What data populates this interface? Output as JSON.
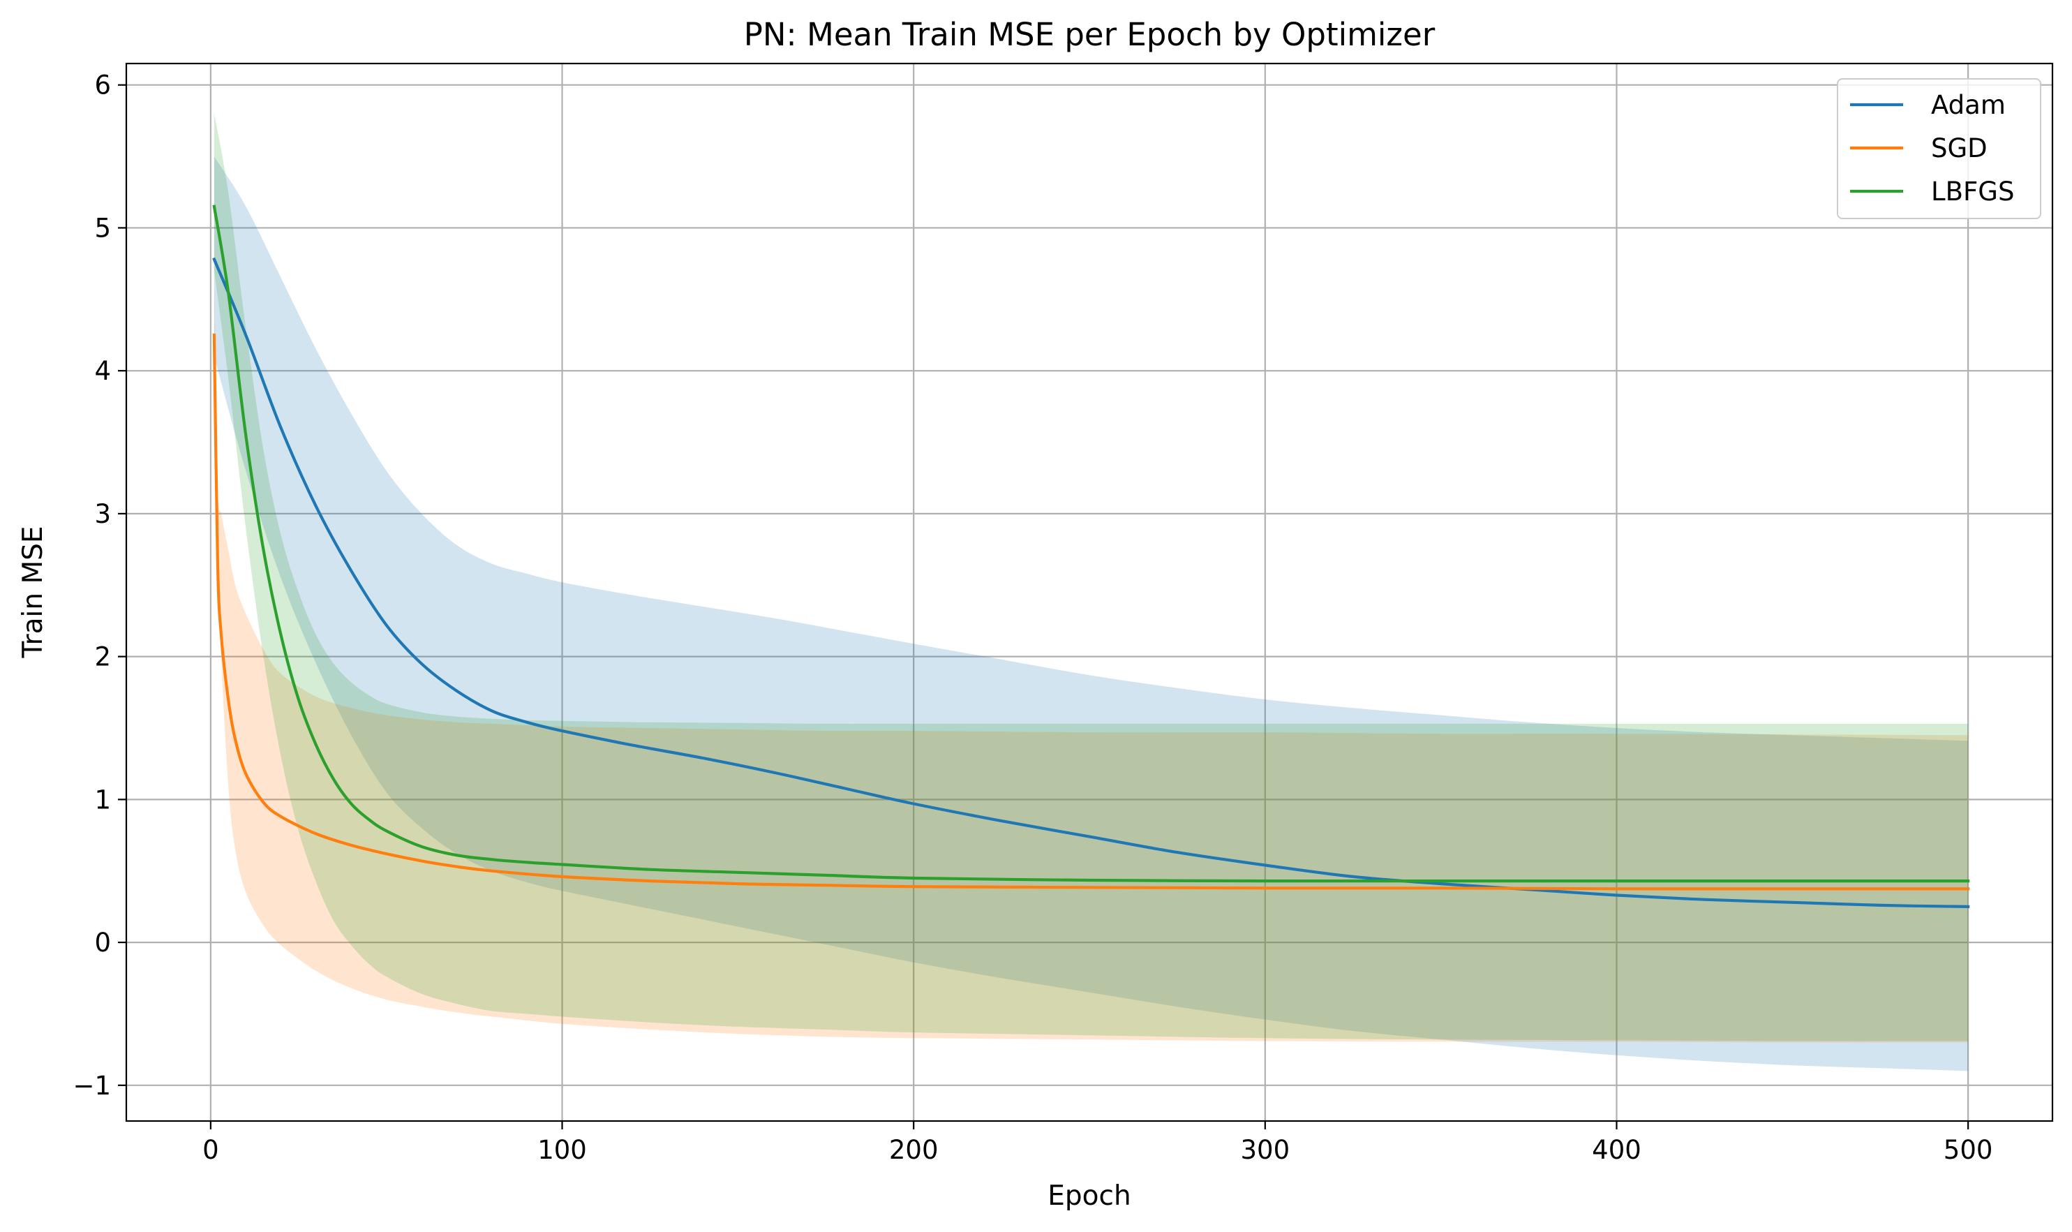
{
  "chart_data": {
    "type": "line",
    "title": "PN: Mean Train MSE per Epoch by Optimizer",
    "xlabel": "Epoch",
    "ylabel": "Train MSE",
    "xlim": [
      -24,
      524
    ],
    "ylim": [
      -1.25,
      6.15
    ],
    "xticks": [
      0,
      100,
      200,
      300,
      400,
      500
    ],
    "yticks": [
      -1,
      0,
      1,
      2,
      3,
      4,
      5,
      6
    ],
    "x_tick_labels": [
      "0",
      "100",
      "200",
      "300",
      "400",
      "500"
    ],
    "y_tick_labels": [
      "−1",
      "0",
      "1",
      "2",
      "3",
      "4",
      "5",
      "6"
    ],
    "grid": true,
    "legend_position": "upper right",
    "band_opacity": 0.2,
    "series": [
      {
        "name": "Adam",
        "color": "#1f77b4",
        "x": [
          1,
          10,
          20,
          30,
          40,
          50,
          60,
          70,
          80,
          90,
          100,
          120,
          140,
          160,
          180,
          200,
          225,
          250,
          275,
          300,
          325,
          350,
          375,
          400,
          425,
          450,
          475,
          500
        ],
        "mean": [
          4.78,
          4.25,
          3.6,
          3.05,
          2.6,
          2.22,
          1.95,
          1.76,
          1.62,
          1.54,
          1.48,
          1.38,
          1.29,
          1.19,
          1.08,
          0.97,
          0.85,
          0.74,
          0.63,
          0.54,
          0.46,
          0.41,
          0.37,
          0.33,
          0.3,
          0.28,
          0.26,
          0.25
        ],
        "lower": [
          4.1,
          3.3,
          2.55,
          1.95,
          1.45,
          1.05,
          0.8,
          0.62,
          0.5,
          0.42,
          0.36,
          0.26,
          0.16,
          0.06,
          -0.04,
          -0.14,
          -0.25,
          -0.35,
          -0.45,
          -0.54,
          -0.62,
          -0.68,
          -0.74,
          -0.79,
          -0.83,
          -0.86,
          -0.88,
          -0.9
        ],
        "upper": [
          5.5,
          5.15,
          4.65,
          4.15,
          3.7,
          3.3,
          3.0,
          2.78,
          2.65,
          2.58,
          2.52,
          2.43,
          2.35,
          2.27,
          2.18,
          2.09,
          1.98,
          1.87,
          1.78,
          1.7,
          1.64,
          1.59,
          1.54,
          1.5,
          1.47,
          1.45,
          1.43,
          1.41
        ]
      },
      {
        "name": "SGD",
        "color": "#ff7f0e",
        "x": [
          1,
          2,
          3,
          5,
          7,
          10,
          15,
          20,
          30,
          40,
          50,
          60,
          70,
          80,
          100,
          125,
          150,
          175,
          200,
          250,
          300,
          350,
          400,
          450,
          500
        ],
        "mean": [
          4.25,
          2.65,
          2.15,
          1.7,
          1.42,
          1.18,
          0.98,
          0.88,
          0.76,
          0.68,
          0.62,
          0.57,
          0.53,
          0.5,
          0.46,
          0.43,
          0.41,
          0.4,
          0.39,
          0.385,
          0.38,
          0.38,
          0.375,
          0.375,
          0.375
        ],
        "lower": [
          3.8,
          2.9,
          2.0,
          1.1,
          0.65,
          0.35,
          0.12,
          -0.02,
          -0.2,
          -0.32,
          -0.4,
          -0.45,
          -0.49,
          -0.52,
          -0.57,
          -0.61,
          -0.64,
          -0.66,
          -0.67,
          -0.68,
          -0.69,
          -0.695,
          -0.695,
          -0.7,
          -0.7
        ],
        "upper": [
          4.7,
          3.2,
          3.0,
          2.75,
          2.5,
          2.3,
          2.05,
          1.88,
          1.72,
          1.64,
          1.59,
          1.56,
          1.54,
          1.53,
          1.51,
          1.5,
          1.49,
          1.48,
          1.48,
          1.47,
          1.47,
          1.46,
          1.46,
          1.455,
          1.45
        ]
      },
      {
        "name": "LBFGS",
        "color": "#2ca02c",
        "x": [
          1,
          5,
          10,
          15,
          20,
          25,
          30,
          35,
          40,
          45,
          50,
          60,
          70,
          80,
          90,
          100,
          125,
          150,
          175,
          200,
          250,
          300,
          350,
          400,
          450,
          500
        ],
        "mean": [
          5.15,
          4.55,
          3.55,
          2.75,
          2.15,
          1.7,
          1.38,
          1.14,
          0.97,
          0.86,
          0.78,
          0.67,
          0.61,
          0.58,
          0.56,
          0.545,
          0.51,
          0.49,
          0.47,
          0.45,
          0.435,
          0.43,
          0.43,
          0.43,
          0.43,
          0.43
        ],
        "lower": [
          4.7,
          3.95,
          2.9,
          2.0,
          1.3,
          0.78,
          0.42,
          0.15,
          -0.02,
          -0.15,
          -0.24,
          -0.36,
          -0.43,
          -0.48,
          -0.5,
          -0.52,
          -0.56,
          -0.59,
          -0.61,
          -0.63,
          -0.65,
          -0.67,
          -0.68,
          -0.685,
          -0.69,
          -0.69
        ],
        "upper": [
          5.8,
          5.25,
          4.3,
          3.45,
          2.85,
          2.45,
          2.15,
          1.95,
          1.82,
          1.73,
          1.67,
          1.61,
          1.58,
          1.565,
          1.555,
          1.55,
          1.54,
          1.535,
          1.53,
          1.53,
          1.53,
          1.53,
          1.53,
          1.53,
          1.53,
          1.53
        ]
      }
    ]
  }
}
